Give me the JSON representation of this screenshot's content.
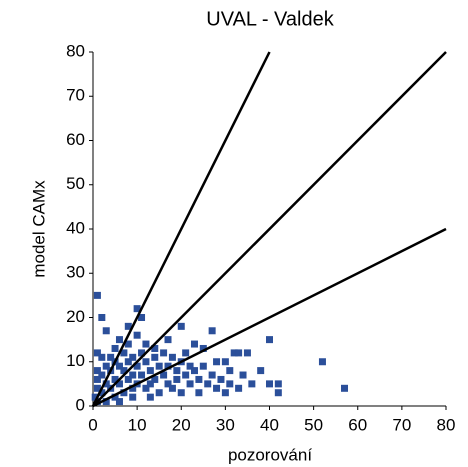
{
  "chart_data": {
    "type": "scatter",
    "title": "UVAL - Valdek",
    "xlabel": "pozorování",
    "ylabel": "model CAMx",
    "x": [
      1,
      2,
      3,
      1,
      2,
      1,
      1,
      1,
      2,
      2,
      3,
      3,
      4,
      4,
      4,
      5,
      5,
      5,
      5,
      6,
      6,
      6,
      7,
      7,
      7,
      8,
      8,
      8,
      8,
      9,
      9,
      9,
      10,
      10,
      10,
      10,
      11,
      11,
      11,
      12,
      12,
      12,
      13,
      13,
      14,
      14,
      14,
      15,
      15,
      16,
      16,
      17,
      17,
      17,
      18,
      18,
      19,
      19,
      20,
      20,
      20,
      21,
      21,
      22,
      22,
      23,
      23,
      24,
      24,
      25,
      25,
      26,
      27,
      27,
      28,
      28,
      29,
      30,
      30,
      31,
      31,
      32,
      33,
      33,
      34,
      35,
      36,
      38,
      40,
      40,
      42,
      42,
      52,
      57,
      0.5,
      1,
      3,
      6,
      9,
      13
    ],
    "y": [
      25,
      20,
      17,
      12,
      11,
      8,
      6,
      4,
      3,
      7,
      9,
      5,
      11,
      8,
      4,
      13,
      10,
      6,
      2,
      15,
      9,
      5,
      12,
      8,
      3,
      18,
      14,
      10,
      6,
      11,
      7,
      4,
      22,
      16,
      9,
      5,
      20,
      12,
      7,
      14,
      10,
      4,
      8,
      5,
      13,
      11,
      6,
      9,
      3,
      12,
      7,
      15,
      9,
      5,
      11,
      4,
      8,
      6,
      18,
      10,
      3,
      12,
      7,
      9,
      5,
      14,
      8,
      6,
      3,
      13,
      9,
      5,
      17,
      7,
      4,
      10,
      6,
      10,
      3,
      8,
      5,
      12,
      12,
      4,
      7,
      12,
      5,
      8,
      15,
      5,
      5,
      3,
      10,
      4,
      2,
      1,
      1,
      1,
      2,
      2
    ],
    "color": "#2b4f9a",
    "reference_lines": [
      {
        "x": [
          0,
          40
        ],
        "y": [
          0,
          80
        ]
      },
      {
        "x": [
          0,
          80
        ],
        "y": [
          0,
          80
        ]
      },
      {
        "x": [
          0,
          80
        ],
        "y": [
          0,
          40
        ]
      }
    ],
    "line_color": "#000000",
    "xlim": [
      0,
      80
    ],
    "ylim": [
      0,
      80
    ],
    "xticks": [
      0,
      10,
      20,
      30,
      40,
      50,
      60,
      70,
      80
    ],
    "yticks": [
      0,
      10,
      20,
      30,
      40,
      50,
      60,
      70,
      80
    ]
  }
}
